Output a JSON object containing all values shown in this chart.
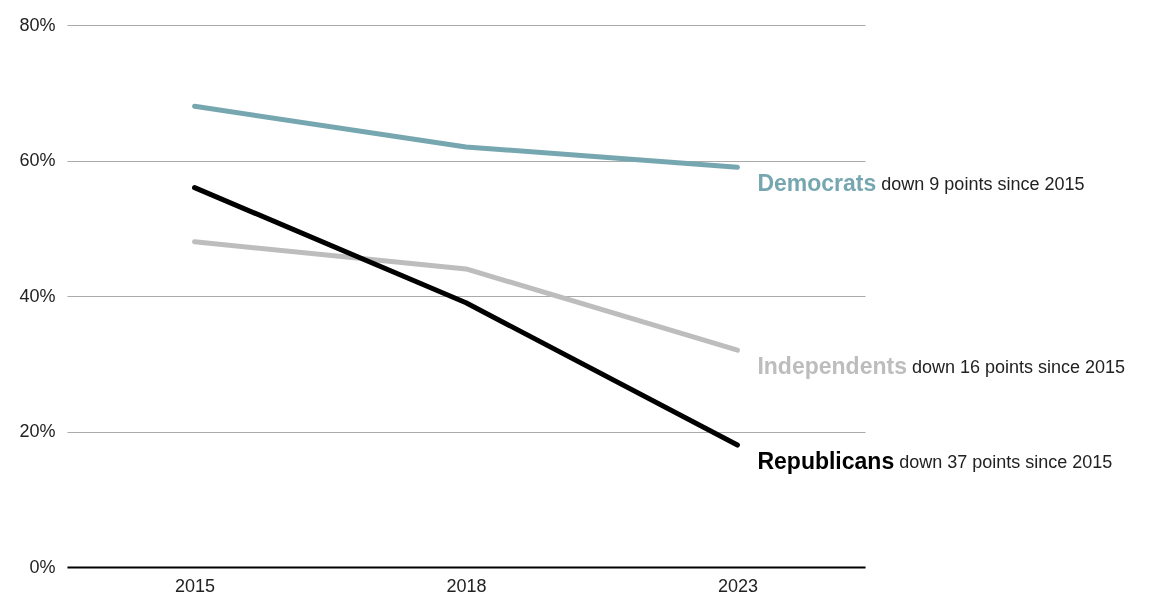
{
  "chart_data": {
    "type": "line",
    "categories": [
      "2015",
      "2018",
      "2023"
    ],
    "series": [
      {
        "name": "Democrats",
        "color": "#76a7b0",
        "values": [
          68,
          62,
          59
        ]
      },
      {
        "name": "Independents",
        "color": "#bdbdbd",
        "values": [
          48,
          44,
          32
        ]
      },
      {
        "name": "Republicans",
        "color": "#000000",
        "values": [
          56,
          39,
          18
        ]
      }
    ],
    "annotations": [
      "down 9 points since 2015",
      "down 16 points since 2015",
      "down 37 points since 2015"
    ],
    "ylim": [
      0,
      80
    ],
    "yticks": [
      {
        "value": 0,
        "label": "0%"
      },
      {
        "value": 20,
        "label": "20%"
      },
      {
        "value": 40,
        "label": "40%"
      },
      {
        "value": 60,
        "label": "60%"
      },
      {
        "value": 80,
        "label": "80%"
      }
    ],
    "grid": "y",
    "legend": false,
    "marker": "none",
    "line_style": "solid"
  }
}
